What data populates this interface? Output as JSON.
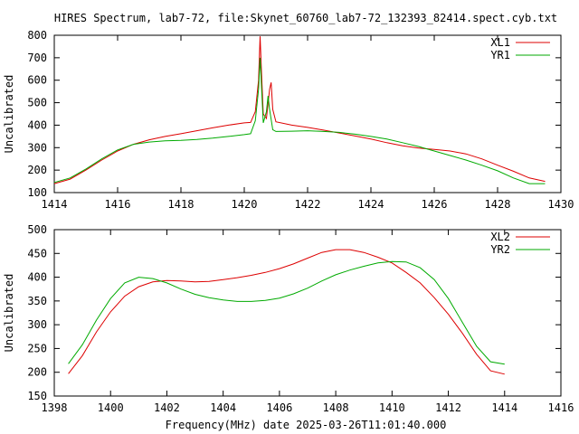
{
  "title": "HIRES Spectrum, lab7-72, file:Skynet_60760_lab7-72_132393_82414.spect.cyb.txt",
  "x_axis_label": "Frequency(MHz) date 2025-03-26T11:01:40.000",
  "colors": {
    "red": "#dd0000",
    "green": "#00aa00",
    "axis": "#000000",
    "bg": "#ffffff"
  },
  "chart_data": [
    {
      "type": "line",
      "ylabel": "Uncalibrated",
      "xlim": [
        1414,
        1430
      ],
      "ylim": [
        100,
        800
      ],
      "x_ticks": [
        1414,
        1416,
        1418,
        1420,
        1422,
        1424,
        1426,
        1428,
        1430
      ],
      "y_ticks": [
        100,
        200,
        300,
        400,
        500,
        600,
        700,
        800
      ],
      "legend_position": "top-right",
      "grid": false,
      "series": [
        {
          "name": "XL1",
          "color": "#dd0000",
          "points": [
            [
              1414.0,
              140
            ],
            [
              1414.5,
              160
            ],
            [
              1415.0,
              200
            ],
            [
              1415.5,
              245
            ],
            [
              1416.0,
              285
            ],
            [
              1416.5,
              315
            ],
            [
              1417.0,
              335
            ],
            [
              1417.5,
              350
            ],
            [
              1418.0,
              362
            ],
            [
              1418.5,
              375
            ],
            [
              1419.0,
              388
            ],
            [
              1419.5,
              400
            ],
            [
              1420.0,
              410
            ],
            [
              1420.2,
              412
            ],
            [
              1420.35,
              460
            ],
            [
              1420.45,
              600
            ],
            [
              1420.5,
              795
            ],
            [
              1420.55,
              620
            ],
            [
              1420.6,
              450
            ],
            [
              1420.7,
              430
            ],
            [
              1420.8,
              560
            ],
            [
              1420.85,
              590
            ],
            [
              1420.9,
              470
            ],
            [
              1421.0,
              415
            ],
            [
              1421.5,
              400
            ],
            [
              1422.0,
              390
            ],
            [
              1422.5,
              378
            ],
            [
              1423.0,
              365
            ],
            [
              1423.5,
              352
            ],
            [
              1424.0,
              338
            ],
            [
              1424.5,
              322
            ],
            [
              1425.0,
              308
            ],
            [
              1425.5,
              298
            ],
            [
              1426.0,
              292
            ],
            [
              1426.5,
              285
            ],
            [
              1427.0,
              272
            ],
            [
              1427.5,
              250
            ],
            [
              1428.0,
              222
            ],
            [
              1428.5,
              195
            ],
            [
              1429.0,
              165
            ],
            [
              1429.5,
              150
            ]
          ]
        },
        {
          "name": "YR1",
          "color": "#00aa00",
          "points": [
            [
              1414.0,
              145
            ],
            [
              1414.5,
              165
            ],
            [
              1415.0,
              205
            ],
            [
              1415.5,
              250
            ],
            [
              1416.0,
              290
            ],
            [
              1416.5,
              315
            ],
            [
              1417.0,
              325
            ],
            [
              1417.5,
              330
            ],
            [
              1418.0,
              332
            ],
            [
              1418.5,
              336
            ],
            [
              1419.0,
              342
            ],
            [
              1419.5,
              350
            ],
            [
              1420.0,
              358
            ],
            [
              1420.2,
              362
            ],
            [
              1420.35,
              420
            ],
            [
              1420.45,
              560
            ],
            [
              1420.5,
              700
            ],
            [
              1420.55,
              560
            ],
            [
              1420.6,
              410
            ],
            [
              1420.7,
              460
            ],
            [
              1420.75,
              530
            ],
            [
              1420.8,
              470
            ],
            [
              1420.9,
              380
            ],
            [
              1421.0,
              372
            ],
            [
              1421.5,
              373
            ],
            [
              1422.0,
              375
            ],
            [
              1422.5,
              372
            ],
            [
              1423.0,
              368
            ],
            [
              1423.5,
              360
            ],
            [
              1424.0,
              350
            ],
            [
              1424.5,
              338
            ],
            [
              1425.0,
              322
            ],
            [
              1425.5,
              305
            ],
            [
              1426.0,
              285
            ],
            [
              1426.5,
              265
            ],
            [
              1427.0,
              245
            ],
            [
              1427.5,
              222
            ],
            [
              1428.0,
              197
            ],
            [
              1428.5,
              165
            ],
            [
              1429.0,
              140
            ],
            [
              1429.5,
              140
            ]
          ]
        }
      ]
    },
    {
      "type": "line",
      "ylabel": "Uncalibrated",
      "xlim": [
        1398,
        1416
      ],
      "ylim": [
        150,
        500
      ],
      "x_ticks": [
        1398,
        1400,
        1402,
        1404,
        1406,
        1408,
        1410,
        1412,
        1414,
        1416
      ],
      "y_ticks": [
        150,
        200,
        250,
        300,
        350,
        400,
        450,
        500
      ],
      "legend_position": "top-right",
      "grid": false,
      "series": [
        {
          "name": "XL2",
          "color": "#dd0000",
          "points": [
            [
              1398.5,
              197
            ],
            [
              1399.0,
              235
            ],
            [
              1399.5,
              285
            ],
            [
              1400.0,
              327
            ],
            [
              1400.5,
              360
            ],
            [
              1401.0,
              380
            ],
            [
              1401.5,
              390
            ],
            [
              1402.0,
              393
            ],
            [
              1402.5,
              392
            ],
            [
              1403.0,
              390
            ],
            [
              1403.5,
              391
            ],
            [
              1404.0,
              395
            ],
            [
              1404.5,
              399
            ],
            [
              1405.0,
              404
            ],
            [
              1405.5,
              410
            ],
            [
              1406.0,
              418
            ],
            [
              1406.5,
              428
            ],
            [
              1407.0,
              440
            ],
            [
              1407.5,
              452
            ],
            [
              1408.0,
              458
            ],
            [
              1408.5,
              458
            ],
            [
              1409.0,
              452
            ],
            [
              1409.5,
              442
            ],
            [
              1410.0,
              430
            ],
            [
              1410.5,
              410
            ],
            [
              1411.0,
              388
            ],
            [
              1411.5,
              357
            ],
            [
              1412.0,
              322
            ],
            [
              1412.5,
              282
            ],
            [
              1413.0,
              238
            ],
            [
              1413.5,
              203
            ],
            [
              1414.0,
              196
            ]
          ]
        },
        {
          "name": "YR2",
          "color": "#00aa00",
          "points": [
            [
              1398.5,
              218
            ],
            [
              1399.0,
              258
            ],
            [
              1399.5,
              310
            ],
            [
              1400.0,
              355
            ],
            [
              1400.5,
              388
            ],
            [
              1401.0,
              400
            ],
            [
              1401.5,
              397
            ],
            [
              1402.0,
              388
            ],
            [
              1402.5,
              375
            ],
            [
              1403.0,
              364
            ],
            [
              1403.5,
              357
            ],
            [
              1404.0,
              352
            ],
            [
              1404.5,
              349
            ],
            [
              1405.0,
              349
            ],
            [
              1405.5,
              351
            ],
            [
              1406.0,
              356
            ],
            [
              1406.5,
              365
            ],
            [
              1407.0,
              377
            ],
            [
              1407.5,
              392
            ],
            [
              1408.0,
              405
            ],
            [
              1408.5,
              415
            ],
            [
              1409.0,
              423
            ],
            [
              1409.5,
              430
            ],
            [
              1410.0,
              433
            ],
            [
              1410.5,
              432
            ],
            [
              1411.0,
              420
            ],
            [
              1411.5,
              395
            ],
            [
              1412.0,
              355
            ],
            [
              1412.5,
              305
            ],
            [
              1413.0,
              255
            ],
            [
              1413.5,
              222
            ],
            [
              1414.0,
              217
            ]
          ]
        }
      ]
    }
  ]
}
